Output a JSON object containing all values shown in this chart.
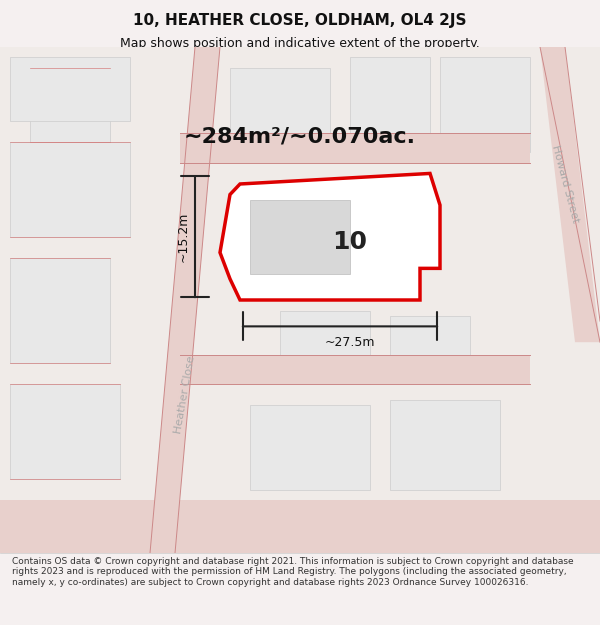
{
  "title": "10, HEATHER CLOSE, OLDHAM, OL4 2JS",
  "subtitle": "Map shows position and indicative extent of the property.",
  "area_text": "~284m²/~0.070ac.",
  "width_label": "~27.5m",
  "height_label": "~15.2m",
  "number_label": "10",
  "copyright_text": "Contains OS data © Crown copyright and database right 2021. This information is subject to Crown copyright and database rights 2023 and is reproduced with the permission of HM Land Registry. The polygons (including the associated geometry, namely x, y co-ordinates) are subject to Crown copyright and database rights 2023 Ordnance Survey 100026316.",
  "bg_color": "#f5f0ee",
  "map_bg": "#f5f0ee",
  "plot_bg": "#ffffff",
  "road_color": "#e8c0b8",
  "road_line_color": "#d4453a",
  "building_fill": "#d8d8d8",
  "building_edge": "#cccccc",
  "property_fill": "#ffffff",
  "property_edge": "#dd0000",
  "dim_line_color": "#222222",
  "text_color": "#111111",
  "street_label_color": "#aaaaaa",
  "howard_street_label": "Howard Street",
  "heather_close_label": "Heather Close",
  "title_fontsize": 11,
  "subtitle_fontsize": 9,
  "copyright_fontsize": 6.5,
  "area_fontsize": 16,
  "number_fontsize": 18,
  "dim_fontsize": 9,
  "street_fontsize": 8
}
